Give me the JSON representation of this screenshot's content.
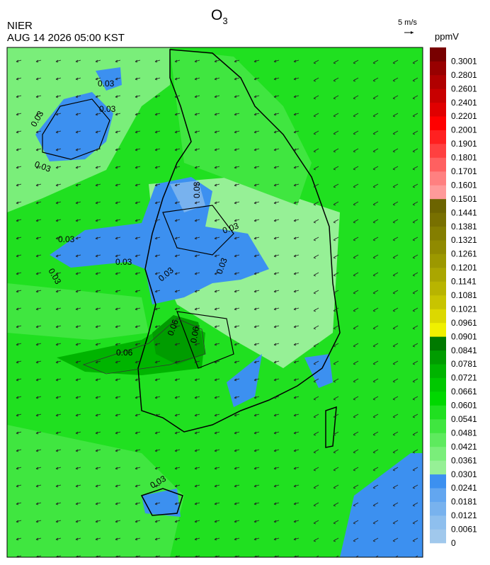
{
  "header": {
    "title": "O",
    "title_sub": "3",
    "agency": "NIER",
    "datetime": "AUG 14 2026 05:00 KST",
    "wind_scale": "5 m/s",
    "unit": "ppmV"
  },
  "colorbar": {
    "levels": [
      0,
      0.0061,
      0.0121,
      0.0181,
      0.0241,
      0.0301,
      0.0361,
      0.0421,
      0.0481,
      0.0541,
      0.0601,
      0.0661,
      0.0721,
      0.0781,
      0.0841,
      0.0901,
      0.0961,
      0.1021,
      0.1081,
      0.1141,
      0.1201,
      0.1261,
      0.1321,
      0.1381,
      0.1441,
      0.1501,
      0.1601,
      0.1701,
      0.1801,
      0.1901,
      0.2001,
      0.2201,
      0.2401,
      0.2601,
      0.2801,
      0.3001
    ],
    "colors": [
      "#a0c8ec",
      "#8ebfee",
      "#78b2ee",
      "#62a6f0",
      "#3c90f0",
      "#96f096",
      "#7aee7a",
      "#5eea5e",
      "#40e640",
      "#20e020",
      "#00d800",
      "#00c800",
      "#00b400",
      "#009c00",
      "#007a00",
      "#f0f000",
      "#dcd800",
      "#c8c400",
      "#b8b400",
      "#aaa600",
      "#9c9800",
      "#908a00",
      "#847e00",
      "#787000",
      "#6c6400",
      "#ff9a9a",
      "#ff8080",
      "#ff6060",
      "#ff4040",
      "#ff2020",
      "#ff0000",
      "#e00000",
      "#c80000",
      "#b00000",
      "#980000",
      "#780000"
    ]
  },
  "contour_labels": [
    "0.03",
    "0.03",
    "0.03",
    "0.03",
    "0.03",
    "0.03",
    "0.03",
    "0.03",
    "0.03",
    "0.03",
    "0.03",
    "0.03",
    "0.06",
    "0.06",
    "0.06"
  ]
}
